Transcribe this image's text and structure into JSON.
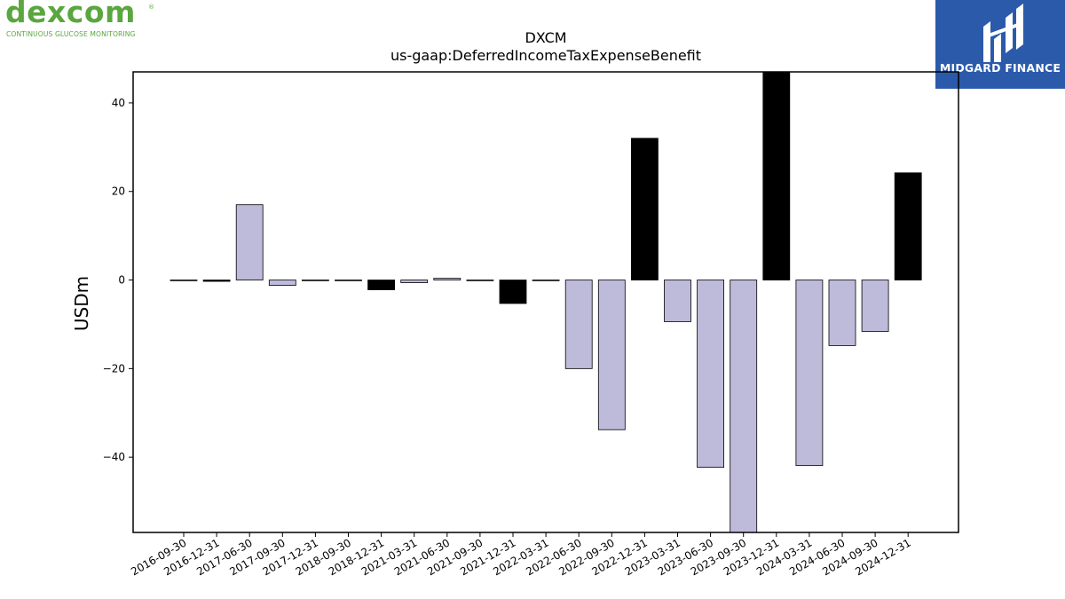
{
  "logos": {
    "left_wordmark": "Dexcom",
    "left_tagline": "CONTINUOUS GLUCOSE MONITORING",
    "right_name": "MIDGARD FINANCE",
    "left_color": "#5aa63f",
    "right_bg_color": "#2b5aab"
  },
  "chart_data": {
    "type": "bar",
    "title": "DXCM",
    "subtitle": "us-gaap:DeferredIncomeTaxExpenseBenefit",
    "xlabel": "",
    "ylabel": "USDm",
    "ylim": [
      -57,
      47
    ],
    "yticks": [
      -40,
      -20,
      0,
      20,
      40
    ],
    "grid": false,
    "categories": [
      "2016-09-30",
      "2016-12-31",
      "2017-06-30",
      "2017-09-30",
      "2017-12-31",
      "2018-09-30",
      "2018-12-31",
      "2021-03-31",
      "2021-06-30",
      "2021-09-30",
      "2021-12-31",
      "2022-03-31",
      "2022-06-30",
      "2022-09-30",
      "2022-12-31",
      "2023-03-31",
      "2023-06-30",
      "2023-09-30",
      "2023-12-31",
      "2024-03-31",
      "2024-06-30",
      "2024-09-30",
      "2024-12-31"
    ],
    "values": [
      0.0,
      -0.3,
      17.0,
      -1.2,
      0.0,
      0.0,
      -2.2,
      -0.6,
      0.4,
      0.0,
      -5.3,
      0.0,
      -20.0,
      -33.8,
      32.0,
      -9.4,
      -42.3,
      -57.0,
      47.0,
      -41.9,
      -14.8,
      -11.6,
      24.2
    ],
    "colors": {
      "q4_bar": "#000000",
      "other_bar": "#bebada",
      "edge": "#000000"
    }
  }
}
